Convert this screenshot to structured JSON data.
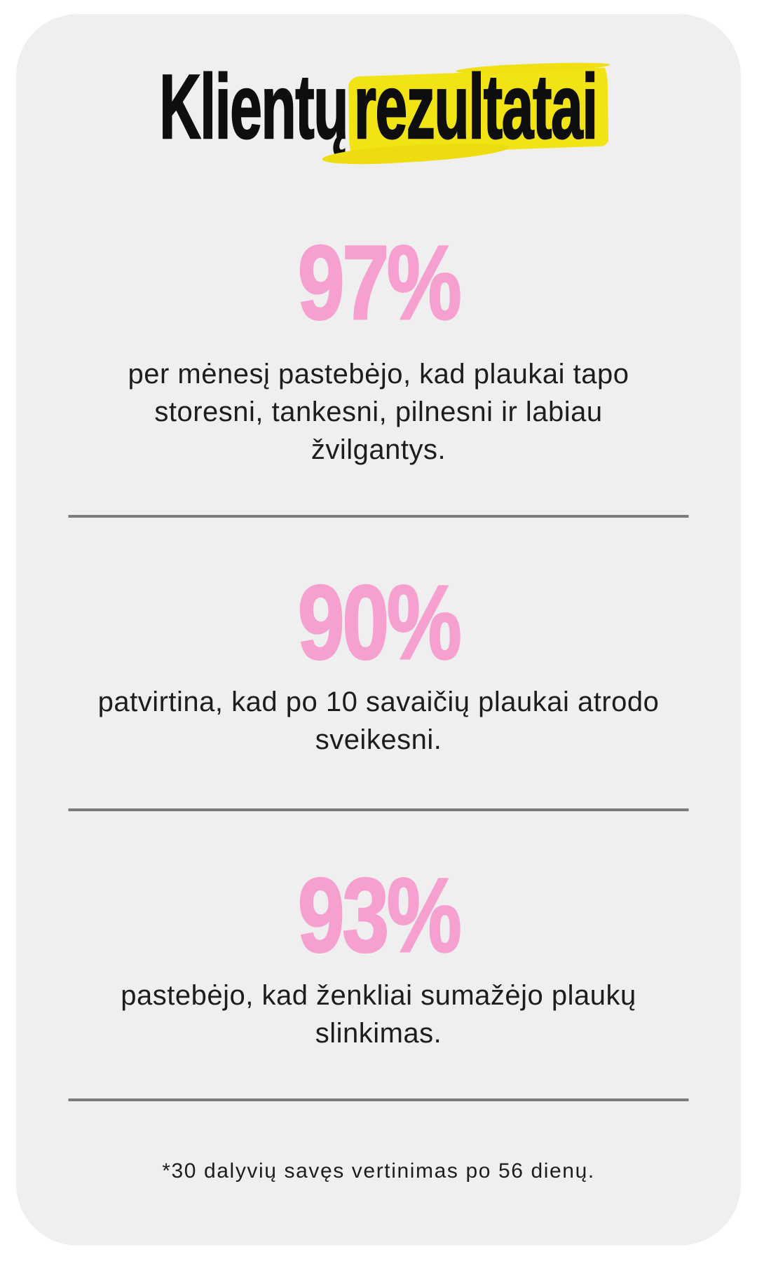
{
  "title": {
    "word1": "Klientų",
    "word2": "rezultatai"
  },
  "stats": [
    {
      "value": "97%",
      "description": "per mėnesį pastebėjo, kad plaukai tapo storesni, tankesni, pilnesni ir labiau žvilgantys."
    },
    {
      "value": "90%",
      "description": "patvirtina, kad po 10 savaičių plaukai atrodo sveikesni."
    },
    {
      "value": "93%",
      "description": "pastebėjo, kad ženkliai sumažėjo plaukų slinkimas."
    }
  ],
  "footnote": "*30 dalyvių savęs vertinimas po 56 dienų.",
  "colors": {
    "accent_pink": "#F6A0D0",
    "highlight_yellow": "#F2E414",
    "card_bg": "#F0EFEF",
    "text_color": "#1D1D1D",
    "title_color": "#0E0E0E",
    "divider_color": "#7B7B7B"
  }
}
